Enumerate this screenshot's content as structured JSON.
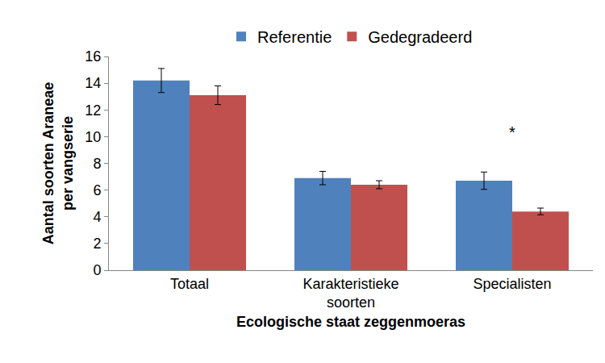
{
  "chart_data": {
    "type": "bar",
    "categories": [
      "Totaal",
      "Karakteristieke\nsoorten",
      "Specialisten"
    ],
    "series": [
      {
        "name": "Referentie",
        "color": "#4F81BD",
        "values": [
          14.2,
          6.9,
          6.7
        ],
        "errors": [
          0.9,
          0.5,
          0.65
        ]
      },
      {
        "name": "Gedegradeerd",
        "color": "#C0504D",
        "values": [
          13.1,
          6.4,
          4.4
        ],
        "errors": [
          0.7,
          0.3,
          0.25
        ]
      }
    ],
    "x_label": "Ecologische staat zeggenmoeras",
    "y_label": "Aantal soorten Araneae\nper vangserie",
    "ylim": [
      0,
      16
    ],
    "yticks": [
      0,
      2,
      4,
      6,
      8,
      10,
      12,
      14,
      16
    ],
    "grid": false,
    "legend": "top",
    "annotations": [
      {
        "text": "*",
        "x": "Specialisten",
        "y": 10.3
      }
    ]
  }
}
